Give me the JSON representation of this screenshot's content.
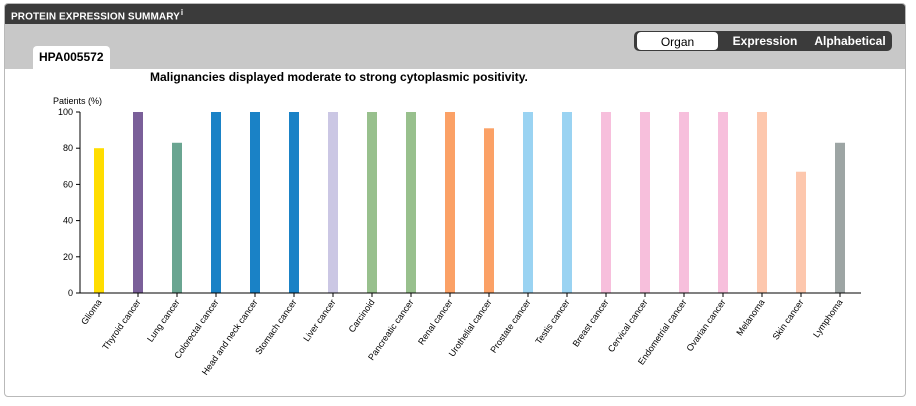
{
  "header": {
    "title": "PROTEIN EXPRESSION SUMMARY",
    "info_marker": "i"
  },
  "gene_tab": {
    "label": "HPA005572"
  },
  "sort_toggle": {
    "options": [
      "Organ",
      "Expression",
      "Alphabetical"
    ],
    "selected": "Organ"
  },
  "summary_text": "Malignancies displayed moderate to strong cytoplasmic positivity.",
  "chart_data": {
    "type": "bar",
    "title": "",
    "xlabel": "",
    "ylabel": "Patients (%)",
    "ylim": [
      0,
      100
    ],
    "yticks": [
      0,
      20,
      40,
      60,
      80,
      100
    ],
    "grid": false,
    "categories": [
      "Glioma",
      "Thyroid cancer",
      "Lung cancer",
      "Colorectal cancer",
      "Head and neck cancer",
      "Stomach cancer",
      "Liver cancer",
      "Carcinoid",
      "Pancreatic cancer",
      "Renal cancer",
      "Urothelial cancer",
      "Prostate cancer",
      "Testis cancer",
      "Breast cancer",
      "Cervical cancer",
      "Endometrial cancer",
      "Ovarian cancer",
      "Melanoma",
      "Skin cancer",
      "Lymphoma"
    ],
    "values": [
      80,
      100,
      83,
      100,
      100,
      100,
      100,
      100,
      100,
      100,
      91,
      100,
      100,
      100,
      100,
      100,
      100,
      100,
      67,
      83
    ],
    "colors": [
      "#ffdd00",
      "#7a5f99",
      "#6aa591",
      "#1a82c6",
      "#1a82c6",
      "#1a82c6",
      "#cbc7e4",
      "#98c08d",
      "#98c08d",
      "#fba166",
      "#fba166",
      "#9ad3f2",
      "#9ad3f2",
      "#f7bfdc",
      "#f7bfdc",
      "#f7bfdc",
      "#f7bfdc",
      "#fdc7ad",
      "#fdc7ad",
      "#9da5a4"
    ]
  }
}
